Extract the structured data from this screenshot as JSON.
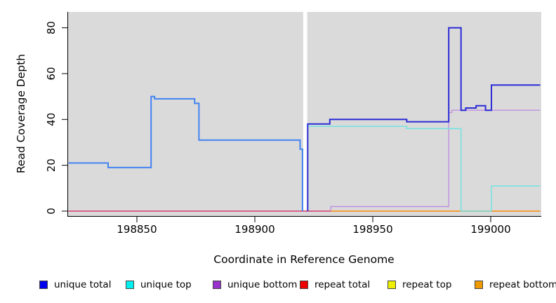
{
  "chart_data": {
    "type": "line",
    "subtype": "step",
    "title": "",
    "xlabel": "Coordinate in Reference Genome",
    "ylabel": "Read Coverage Depth",
    "xlim": [
      198821,
      199021
    ],
    "ylim": [
      -2,
      87
    ],
    "xticks": [
      198850,
      198900,
      198950,
      199000
    ],
    "yticks": [
      0,
      20,
      40,
      60,
      80
    ],
    "grid": false,
    "legend_position": "bottom",
    "panel_bg": "#DADADA",
    "axis_color": "#000000",
    "gap_region": {
      "x0": 198920.5,
      "x1": 198922.2,
      "color": "#FFFFFF"
    },
    "legend": [
      {
        "label": "unique total",
        "color": "#0000EE"
      },
      {
        "label": "unique top",
        "color": "#00EEEE"
      },
      {
        "label": "unique bottom",
        "color": "#9932CC"
      },
      {
        "label": "repeat total",
        "color": "#EE0000"
      },
      {
        "label": "repeat top",
        "color": "#EEEE00"
      },
      {
        "label": "repeat bottom",
        "color": "#EE9900"
      }
    ],
    "series": [
      {
        "name": "unique bottom",
        "color": "#BF90E3",
        "width": 1.4,
        "points": [
          [
            198821,
            0
          ],
          [
            198932.2,
            0
          ],
          [
            198932.2,
            2
          ],
          [
            198982.2,
            2
          ],
          [
            198982.2,
            43
          ],
          [
            198983.5,
            43
          ],
          [
            198983.5,
            44
          ],
          [
            199021,
            44
          ]
        ]
      },
      {
        "name": "repeat total",
        "color": "#DB4A6B",
        "width": 1.6,
        "points": [
          [
            198821,
            0
          ],
          [
            198932.2,
            0
          ]
        ]
      },
      {
        "name": "repeat bottom",
        "color": "#F89621",
        "width": 1.8,
        "points": [
          [
            198932.2,
            0
          ],
          [
            199021,
            0
          ]
        ]
      },
      {
        "name": "repeat top",
        "color": "#EEEE00",
        "width": 1.0,
        "points": [
          [
            198821,
            0
          ],
          [
            198821,
            0
          ]
        ]
      },
      {
        "name": "unique top",
        "color": "#72E3E2",
        "width": 1.5,
        "points": [
          [
            198922.4,
            0
          ],
          [
            198922.4,
            37
          ],
          [
            198964.4,
            37
          ],
          [
            198964.4,
            36
          ],
          [
            198987.4,
            36
          ],
          [
            198987.4,
            0
          ],
          [
            199000.3,
            0
          ],
          [
            199000.3,
            11
          ],
          [
            199021,
            11
          ]
        ]
      },
      {
        "name": "unique total (after gap)",
        "color": "#2B2BD5",
        "width": 2,
        "points": [
          [
            198922.4,
            0
          ],
          [
            198922.4,
            38
          ],
          [
            198931.8,
            38
          ],
          [
            198931.8,
            40
          ],
          [
            198964.4,
            40
          ],
          [
            198964.4,
            39
          ],
          [
            198982.2,
            39
          ],
          [
            198982.2,
            80
          ],
          [
            198987.4,
            80
          ],
          [
            198987.4,
            44
          ],
          [
            198989.4,
            44
          ],
          [
            198989.4,
            45
          ],
          [
            198993.8,
            45
          ],
          [
            198993.8,
            46
          ],
          [
            198997.8,
            46
          ],
          [
            198997.8,
            44
          ],
          [
            199000.3,
            44
          ],
          [
            199000.3,
            55
          ],
          [
            199021,
            55
          ]
        ]
      },
      {
        "name": "unique total (before gap)",
        "color": "#4183F2",
        "width": 2,
        "points": [
          [
            198821,
            21
          ],
          [
            198837.8,
            21
          ],
          [
            198837.8,
            19
          ],
          [
            198856,
            19
          ],
          [
            198856,
            50
          ],
          [
            198857.5,
            50
          ],
          [
            198857.5,
            49
          ],
          [
            198874.5,
            49
          ],
          [
            198874.5,
            47
          ],
          [
            198876.3,
            47
          ],
          [
            198876.3,
            31
          ],
          [
            198919.2,
            31
          ],
          [
            198919.2,
            27
          ],
          [
            198920.2,
            27
          ],
          [
            198920.2,
            0
          ]
        ]
      }
    ]
  }
}
